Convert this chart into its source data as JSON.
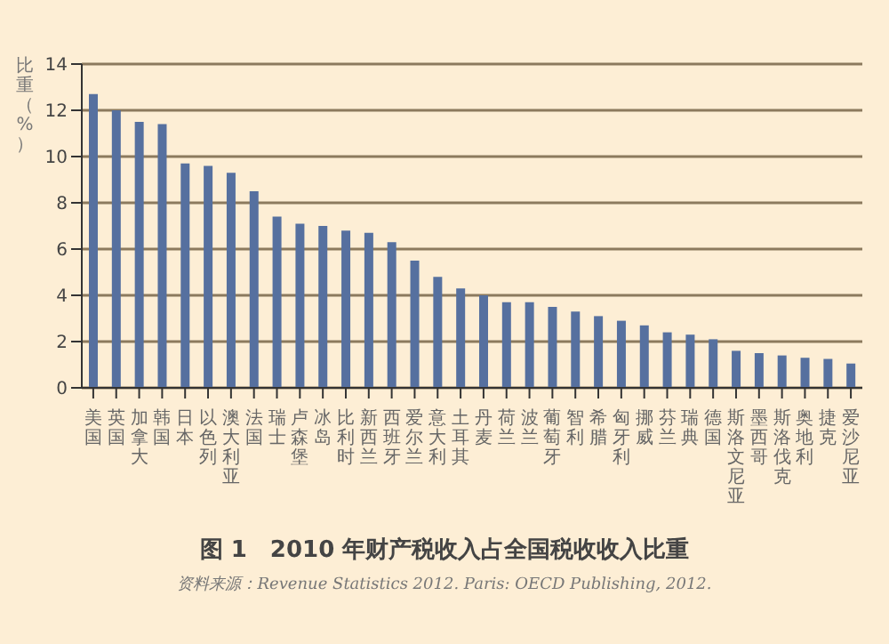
{
  "chart_data": {
    "type": "bar",
    "title": "图 1　2010 年财产税收入占全国税收收入比重",
    "ylabel": "比重（%）",
    "annotations": [
      "资料来源：Revenue Statistics 2012. Paris: OECD Publishing, 2012."
    ],
    "categories": [
      "美国",
      "英国",
      "加拿大",
      "韩国",
      "日本",
      "以色列",
      "澳大利亚",
      "法国",
      "瑞士",
      "卢森堡",
      "冰岛",
      "比利时",
      "新西兰",
      "西班牙",
      "爱尔兰",
      "意大利",
      "土耳其",
      "丹麦",
      "荷兰",
      "波兰",
      "葡萄牙",
      "智利",
      "希腊",
      "匈牙利",
      "挪威",
      "芬兰",
      "瑞典",
      "德国",
      "斯洛文尼亚",
      "墨西哥",
      "斯洛伐克",
      "奥地利",
      "捷克",
      "爱沙尼亚"
    ],
    "values": [
      12.7,
      12.0,
      11.5,
      11.4,
      9.7,
      9.6,
      9.3,
      8.5,
      7.4,
      7.1,
      7.0,
      6.8,
      6.7,
      6.3,
      5.5,
      4.8,
      4.3,
      4.0,
      3.7,
      3.7,
      3.5,
      3.3,
      3.1,
      2.9,
      2.7,
      2.4,
      2.3,
      2.1,
      1.6,
      1.5,
      1.4,
      1.3,
      1.25,
      1.05
    ],
    "color": "#56709f",
    "ylim": [
      0,
      14
    ],
    "yticks": [
      0,
      2,
      4,
      6,
      8,
      10,
      12,
      14
    ],
    "grid": "y"
  }
}
